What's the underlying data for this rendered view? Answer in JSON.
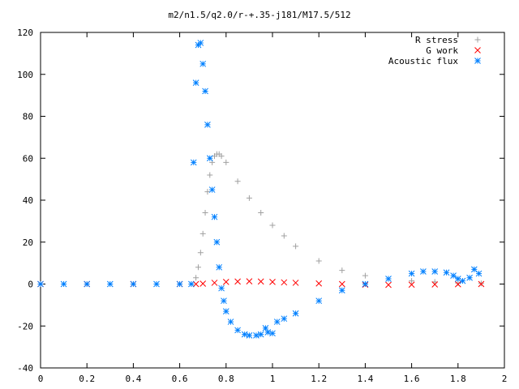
{
  "chart_data": {
    "type": "scatter",
    "title": "m2/n1.5/q2.0/r-+.35-j181/M17.5/512",
    "xlabel": "",
    "ylabel": "",
    "xlim": [
      0,
      2
    ],
    "ylim": [
      -40,
      120
    ],
    "xticks": [
      "0",
      "0.2",
      "0.4",
      "0.6",
      "0.8",
      "1",
      "1.2",
      "1.4",
      "1.6",
      "1.8",
      "2"
    ],
    "xtick_values": [
      0,
      0.2,
      0.4,
      0.6,
      0.8,
      1.0,
      1.2,
      1.4,
      1.6,
      1.8,
      2.0
    ],
    "yticks": [
      "-40",
      "-20",
      "0",
      "20",
      "40",
      "60",
      "80",
      "100",
      "120"
    ],
    "ytick_values": [
      -40,
      -20,
      0,
      20,
      40,
      60,
      80,
      100,
      120
    ],
    "grid": false,
    "legend_position": "top-right",
    "series": [
      {
        "name": "R stress",
        "marker": "plus",
        "color": "#a0a0a0",
        "x": [
          0.67,
          0.68,
          0.69,
          0.7,
          0.71,
          0.72,
          0.73,
          0.74,
          0.75,
          0.76,
          0.77,
          0.78,
          0.8,
          0.85,
          0.9,
          0.95,
          1.0,
          1.05,
          1.1,
          1.2,
          1.3,
          1.4,
          1.5,
          1.6,
          1.7,
          1.8,
          1.9
        ],
        "y": [
          3,
          8,
          15,
          24,
          34,
          44,
          52,
          58,
          61,
          62,
          62,
          61,
          58,
          49,
          41,
          34,
          28,
          23,
          18,
          11,
          6.5,
          4,
          2.5,
          1.5,
          1,
          0.5,
          0.3
        ]
      },
      {
        "name": "G work",
        "marker": "cross",
        "color": "#ff0000",
        "x": [
          0,
          0.2,
          0.4,
          0.6,
          0.67,
          0.7,
          0.75,
          0.8,
          0.85,
          0.9,
          0.95,
          1.0,
          1.05,
          1.1,
          1.2,
          1.3,
          1.4,
          1.5,
          1.6,
          1.7,
          1.8,
          1.9
        ],
        "y": [
          0,
          0,
          0,
          0,
          0,
          0.2,
          0.6,
          1.0,
          1.2,
          1.3,
          1.2,
          1.0,
          0.8,
          0.6,
          0.3,
          0,
          -0.3,
          -0.4,
          -0.3,
          -0.2,
          -0.1,
          0
        ]
      },
      {
        "name": "Acoustic flux",
        "marker": "star",
        "color": "#0080ff",
        "x": [
          0,
          0.1,
          0.2,
          0.3,
          0.4,
          0.5,
          0.6,
          0.65,
          0.66,
          0.67,
          0.68,
          0.69,
          0.7,
          0.71,
          0.72,
          0.73,
          0.74,
          0.75,
          0.76,
          0.77,
          0.78,
          0.79,
          0.8,
          0.82,
          0.85,
          0.88,
          0.9,
          0.93,
          0.95,
          0.97,
          0.98,
          1.0,
          1.02,
          1.05,
          1.1,
          1.2,
          1.3,
          1.4,
          1.5,
          1.6,
          1.65,
          1.7,
          1.75,
          1.78,
          1.8,
          1.82,
          1.85,
          1.87,
          1.89
        ],
        "y": [
          0,
          0,
          0,
          0,
          0,
          0,
          0,
          0,
          58,
          96,
          114,
          115,
          105,
          92,
          76,
          60,
          45,
          32,
          20,
          8,
          -2,
          -8,
          -13,
          -18,
          -22,
          -24,
          -24.5,
          -24.5,
          -24,
          -21,
          -23,
          -23.5,
          -18,
          -16.5,
          -14,
          -8,
          -3,
          0,
          2.5,
          5,
          6,
          6,
          5.5,
          4,
          2.5,
          1.5,
          3,
          7,
          5
        ]
      }
    ]
  }
}
